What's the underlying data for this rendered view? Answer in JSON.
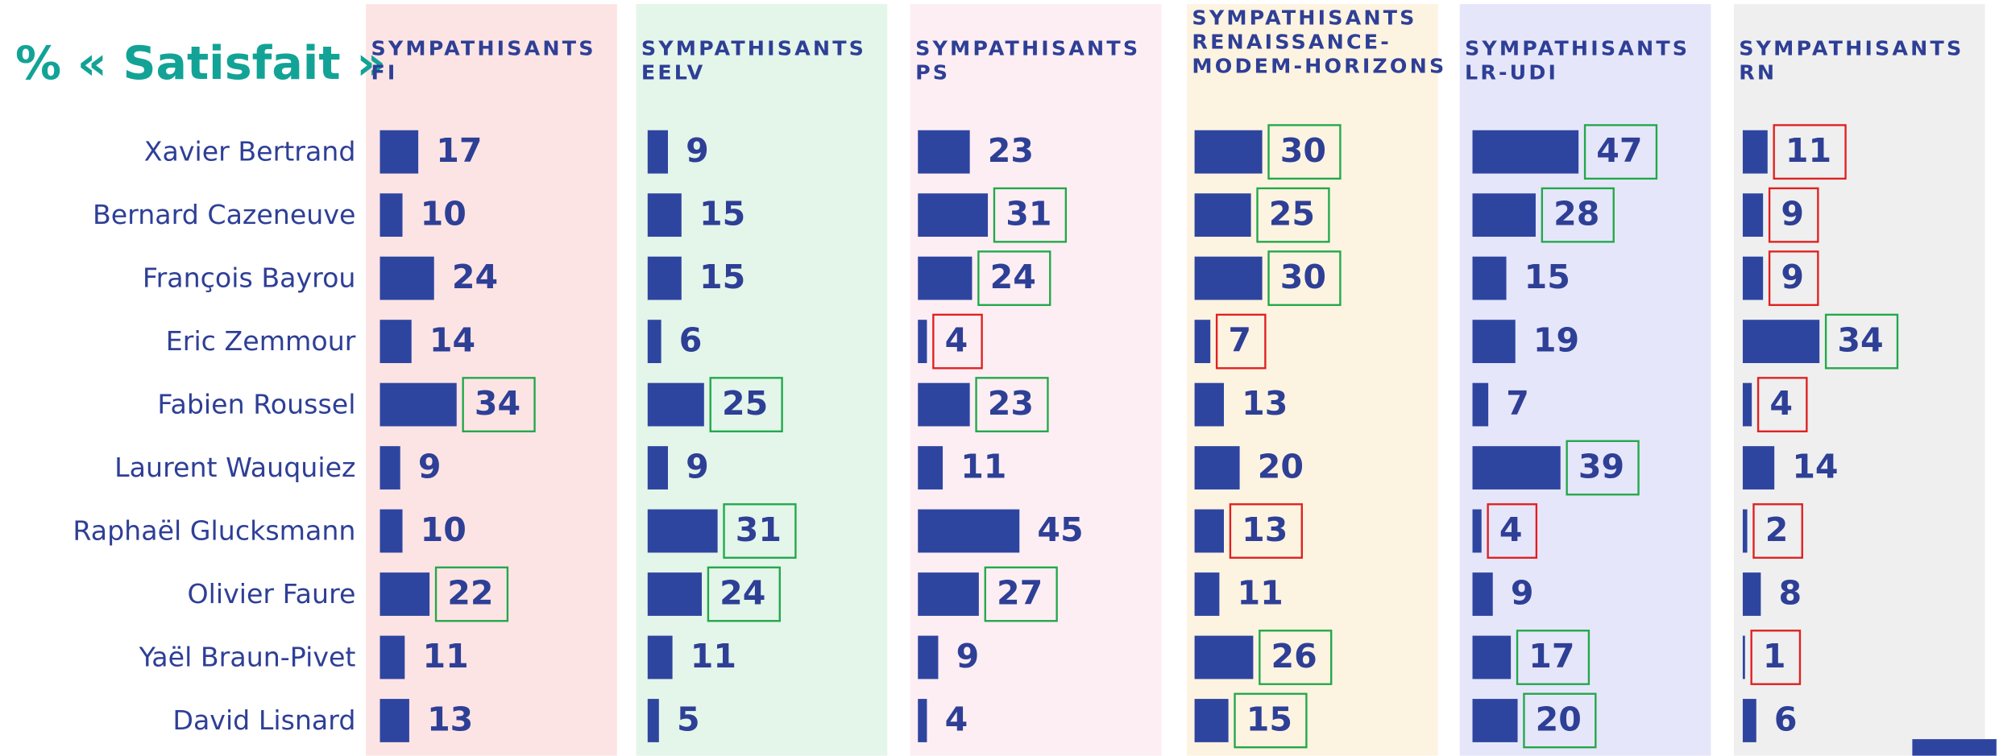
{
  "chart_data": {
    "type": "bar",
    "title": "% « Satisfait »",
    "title_color": "#12a396",
    "bar_color": "#2e45a0",
    "categories": [
      "Xavier Bertrand",
      "Bernard Cazeneuve",
      "François Bayrou",
      "Eric Zemmour",
      "Fabien Roussel",
      "Laurent Wauquiez",
      "Raphaël Glucksmann",
      "Olivier Faure",
      "Yaël Braun-Pivet",
      "David Lisnard"
    ],
    "series": [
      {
        "name": "SYMPATHISANTS\nFI",
        "background": "#fde4e4",
        "values": [
          17,
          10,
          24,
          14,
          34,
          9,
          10,
          22,
          11,
          13
        ],
        "highlight": [
          null,
          null,
          null,
          null,
          "#22a84a",
          null,
          null,
          "#22a84a",
          null,
          null
        ]
      },
      {
        "name": "SYMPATHISANTS\nEELV",
        "background": "#e4f5ea",
        "values": [
          9,
          15,
          15,
          6,
          25,
          9,
          31,
          24,
          11,
          5
        ],
        "highlight": [
          null,
          null,
          null,
          null,
          "#22a84a",
          null,
          "#22a84a",
          "#22a84a",
          null,
          null
        ]
      },
      {
        "name": "SYMPATHISANTS\nPS",
        "background": "#fdeef3",
        "values": [
          23,
          31,
          24,
          4,
          23,
          11,
          45,
          27,
          9,
          4
        ],
        "highlight": [
          null,
          "#22a84a",
          "#22a84a",
          "#e02020",
          "#22a84a",
          null,
          null,
          "#22a84a",
          null,
          null
        ]
      },
      {
        "name": "SYMPATHISANTS\nRENAISSANCE-\nMODEM-HORIZONS",
        "background": "#fdf3e1",
        "values": [
          30,
          25,
          30,
          7,
          13,
          20,
          13,
          11,
          26,
          15
        ],
        "highlight": [
          "#22a84a",
          "#22a84a",
          "#22a84a",
          "#e02020",
          null,
          null,
          "#e02020",
          null,
          "#22a84a",
          "#22a84a"
        ]
      },
      {
        "name": "SYMPATHISANTS\nLR-UDI",
        "background": "#e6e6fa",
        "values": [
          47,
          28,
          15,
          19,
          7,
          39,
          4,
          9,
          17,
          20
        ],
        "highlight": [
          "#22a84a",
          "#22a84a",
          null,
          null,
          null,
          "#22a84a",
          "#e02020",
          null,
          "#22a84a",
          "#22a84a"
        ]
      },
      {
        "name": "SYMPATHISANTS\nRN",
        "background": "#efefef",
        "values": [
          11,
          9,
          9,
          34,
          4,
          14,
          2,
          8,
          1,
          6
        ],
        "highlight": [
          "#e02020",
          "#e02020",
          "#e02020",
          "#22a84a",
          "#e02020",
          null,
          "#e02020",
          null,
          "#e02020",
          null
        ]
      }
    ]
  }
}
